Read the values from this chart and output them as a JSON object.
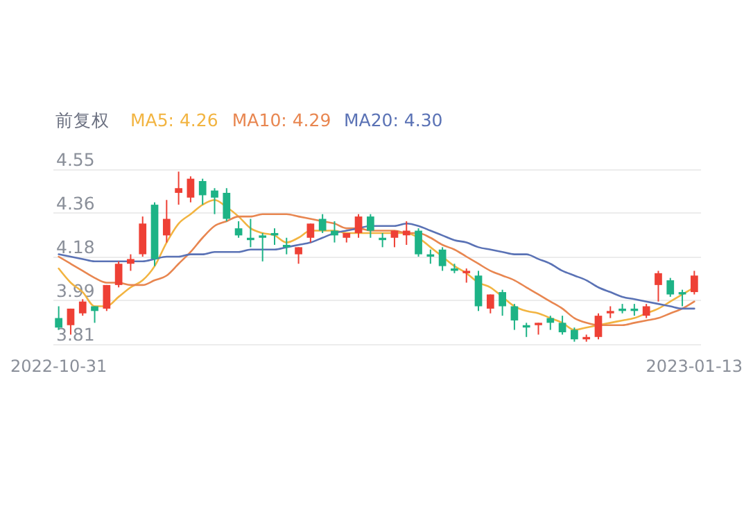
{
  "chart_data": {
    "type": "candlestick",
    "legend_title": "前复权",
    "legend": "top left",
    "grid": "y",
    "categories": [
      "2022-10-31",
      null,
      null,
      null,
      null,
      null,
      null,
      null,
      null,
      null,
      null,
      null,
      null,
      null,
      null,
      null,
      null,
      null,
      null,
      null,
      null,
      null,
      null,
      null,
      null,
      null,
      null,
      null,
      null,
      null,
      null,
      null,
      null,
      null,
      null,
      null,
      null,
      null,
      null,
      null,
      null,
      null,
      null,
      null,
      null,
      null,
      null,
      null,
      null,
      null,
      null,
      null,
      null,
      "2023-01-13"
    ],
    "ylim": [
      3.81,
      4.55
    ],
    "yticks": [
      3.81,
      {
        "value": 3.995,
        "label": "3.99"
      },
      4.18,
      {
        "value": 4.365,
        "label": "4.36"
      },
      4.55
    ],
    "ohlc": [
      [
        3.92,
        3.97,
        3.87,
        3.88
      ],
      [
        3.89,
        3.96,
        3.85,
        3.96
      ],
      [
        3.94,
        4.0,
        3.93,
        3.99
      ],
      [
        3.97,
        3.97,
        3.9,
        3.95
      ],
      [
        3.96,
        4.06,
        3.95,
        4.06
      ],
      [
        4.06,
        4.16,
        4.05,
        4.15
      ],
      [
        4.15,
        4.19,
        4.12,
        4.17
      ],
      [
        4.19,
        4.35,
        4.18,
        4.32
      ],
      [
        4.4,
        4.41,
        4.14,
        4.17
      ],
      [
        4.27,
        4.42,
        4.24,
        4.34
      ],
      [
        4.45,
        4.54,
        4.4,
        4.47
      ],
      [
        4.43,
        4.52,
        4.41,
        4.51
      ],
      [
        4.5,
        4.51,
        4.4,
        4.44
      ],
      [
        4.46,
        4.47,
        4.36,
        4.43
      ],
      [
        4.45,
        4.47,
        4.33,
        4.34
      ],
      [
        4.3,
        4.33,
        4.26,
        4.27
      ],
      [
        4.26,
        4.34,
        4.22,
        4.25
      ],
      [
        4.27,
        4.28,
        4.16,
        4.26
      ],
      [
        4.28,
        4.3,
        4.23,
        4.27
      ],
      [
        4.23,
        4.26,
        4.19,
        4.22
      ],
      [
        4.19,
        4.22,
        4.15,
        4.22
      ],
      [
        4.26,
        4.32,
        4.24,
        4.32
      ],
      [
        4.34,
        4.36,
        4.28,
        4.29
      ],
      [
        4.29,
        4.33,
        4.24,
        4.27
      ],
      [
        4.26,
        4.28,
        4.24,
        4.28
      ],
      [
        4.28,
        4.36,
        4.26,
        4.35
      ],
      [
        4.35,
        4.36,
        4.26,
        4.29
      ],
      [
        4.26,
        4.28,
        4.22,
        4.25
      ],
      [
        4.26,
        4.29,
        4.22,
        4.29
      ],
      [
        4.27,
        4.33,
        4.23,
        4.29
      ],
      [
        4.29,
        4.3,
        4.18,
        4.19
      ],
      [
        4.19,
        4.21,
        4.15,
        4.18
      ],
      [
        4.21,
        4.22,
        4.12,
        4.14
      ],
      [
        4.13,
        4.15,
        4.11,
        4.12
      ],
      [
        4.11,
        4.13,
        4.07,
        4.12
      ],
      [
        4.1,
        4.12,
        3.95,
        3.97
      ],
      [
        3.96,
        4.02,
        3.94,
        4.02
      ],
      [
        4.03,
        4.04,
        3.93,
        3.97
      ],
      [
        3.97,
        3.98,
        3.87,
        3.91
      ],
      [
        3.89,
        3.9,
        3.84,
        3.88
      ],
      [
        3.89,
        3.9,
        3.85,
        3.9
      ],
      [
        3.92,
        3.93,
        3.87,
        3.9
      ],
      [
        3.9,
        3.93,
        3.85,
        3.86
      ],
      [
        3.87,
        3.88,
        3.82,
        3.83
      ],
      [
        3.83,
        3.85,
        3.82,
        3.84
      ],
      [
        3.84,
        3.94,
        3.83,
        3.93
      ],
      [
        3.94,
        3.97,
        3.92,
        3.95
      ],
      [
        3.96,
        3.98,
        3.94,
        3.95
      ],
      [
        3.96,
        3.98,
        3.93,
        3.95
      ],
      [
        3.93,
        3.98,
        3.92,
        3.97
      ],
      [
        4.06,
        4.12,
        3.99,
        4.11
      ],
      [
        4.08,
        4.09,
        4.01,
        4.02
      ],
      [
        4.03,
        4.04,
        3.97,
        4.02
      ],
      [
        4.03,
        4.12,
        4.02,
        4.1
      ]
    ],
    "colors": [
      "#1db386",
      "#ee4035",
      "#ee4035",
      "#1db386",
      "#ee4035",
      "#ee4035",
      "#ee4035",
      "#ee4035",
      "#1db386",
      "#ee4035",
      "#ee4035",
      "#ee4035",
      "#1db386",
      "#1db386",
      "#1db386",
      "#1db386",
      "#1db386",
      "#1db386",
      "#1db386",
      "#1db386",
      "#ee4035",
      "#ee4035",
      "#1db386",
      "#1db386",
      "#ee4035",
      "#ee4035",
      "#1db386",
      "#1db386",
      "#ee4035",
      "#ee4035",
      "#1db386",
      "#1db386",
      "#1db386",
      "#1db386",
      "#ee4035",
      "#1db386",
      "#ee4035",
      "#1db386",
      "#1db386",
      "#1db386",
      "#ee4035",
      "#1db386",
      "#1db386",
      "#1db386",
      "#ee4035",
      "#ee4035",
      "#ee4035",
      "#1db386",
      "#1db386",
      "#ee4035",
      "#ee4035",
      "#1db386",
      "#1db386",
      "#ee4035"
    ],
    "series": [
      {
        "type": "line",
        "name": "MA5: 4.26",
        "color": "#f2b441",
        "values": [
          4.13,
          4.07,
          4.03,
          3.97,
          3.97,
          4.01,
          4.05,
          4.08,
          4.14,
          4.24,
          4.32,
          4.36,
          4.4,
          4.42,
          4.39,
          4.35,
          4.3,
          4.28,
          4.27,
          4.24,
          4.26,
          4.29,
          4.29,
          4.29,
          4.28,
          4.28,
          4.28,
          4.28,
          4.28,
          4.28,
          4.26,
          4.22,
          4.18,
          4.14,
          4.11,
          4.07,
          4.05,
          4.01,
          3.97,
          3.95,
          3.94,
          3.92,
          3.9,
          3.87,
          3.88,
          3.89,
          3.9,
          3.91,
          3.92,
          3.94,
          3.96,
          3.99,
          4.02,
          4.05
        ]
      },
      {
        "type": "line",
        "name": "MA10: 4.29",
        "color": "#e88650",
        "values": [
          4.18,
          4.15,
          4.12,
          4.09,
          4.07,
          4.07,
          4.06,
          4.06,
          4.08,
          4.1,
          4.15,
          4.2,
          4.26,
          4.31,
          4.33,
          4.35,
          4.35,
          4.36,
          4.36,
          4.36,
          4.35,
          4.34,
          4.33,
          4.32,
          4.3,
          4.3,
          4.29,
          4.29,
          4.29,
          4.28,
          4.28,
          4.26,
          4.23,
          4.21,
          4.18,
          4.15,
          4.12,
          4.1,
          4.08,
          4.05,
          4.02,
          3.99,
          3.96,
          3.92,
          3.9,
          3.89,
          3.89,
          3.89,
          3.9,
          3.91,
          3.92,
          3.94,
          3.96,
          3.99
        ]
      },
      {
        "type": "line",
        "name": "MA20: 4.30",
        "color": "#5a72b5",
        "values": [
          4.19,
          4.18,
          4.17,
          4.16,
          4.16,
          4.16,
          4.16,
          4.16,
          4.17,
          4.18,
          4.18,
          4.19,
          4.19,
          4.2,
          4.2,
          4.2,
          4.21,
          4.21,
          4.21,
          4.22,
          4.23,
          4.24,
          4.26,
          4.28,
          4.29,
          4.3,
          4.31,
          4.31,
          4.31,
          4.32,
          4.31,
          4.29,
          4.27,
          4.25,
          4.24,
          4.22,
          4.21,
          4.2,
          4.19,
          4.19,
          4.17,
          4.15,
          4.12,
          4.1,
          4.08,
          4.05,
          4.03,
          4.01,
          4.0,
          3.99,
          3.98,
          3.97,
          3.96,
          3.96
        ]
      }
    ]
  }
}
